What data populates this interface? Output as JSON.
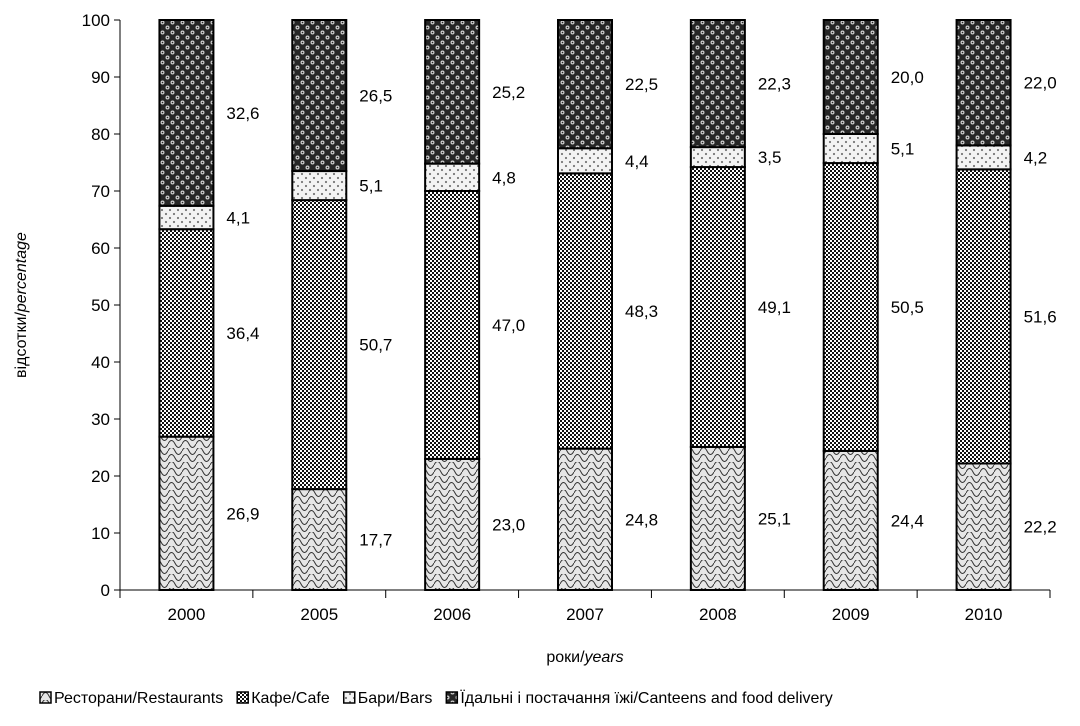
{
  "chart_data": {
    "type": "bar",
    "stacked": true,
    "categories": [
      "2000",
      "2005",
      "2006",
      "2007",
      "2008",
      "2009",
      "2010"
    ],
    "series": [
      {
        "name": "Ресторани/Restaurants",
        "values": [
          26.9,
          17.7,
          23.0,
          24.8,
          25.1,
          24.4,
          22.2
        ],
        "labels": [
          "26,9",
          "17,7",
          "23,0",
          "24,8",
          "25,1",
          "24,4",
          "22,2"
        ],
        "pattern": "scales"
      },
      {
        "name": "Кафе/Cafe",
        "values": [
          36.4,
          50.7,
          47.0,
          48.3,
          49.1,
          50.5,
          51.6
        ],
        "labels": [
          "36,4",
          "50,7",
          "47,0",
          "48,3",
          "49,1",
          "50,5",
          "51,6"
        ],
        "pattern": "checker"
      },
      {
        "name": "Бари/Bars",
        "values": [
          4.1,
          5.1,
          4.8,
          4.4,
          3.5,
          5.1,
          4.2
        ],
        "labels": [
          "4,1",
          "5,1",
          "4,8",
          "4,4",
          "3,5",
          "5,1",
          "4,2"
        ],
        "pattern": "dots"
      },
      {
        "name": "Їдальні і постачання їжі/Canteens and food delivery",
        "values": [
          32.6,
          26.5,
          25.2,
          22.5,
          22.3,
          20.0,
          22.0
        ],
        "labels": [
          "32,6",
          "26,5",
          "25,2",
          "22,5",
          "22,3",
          "20,0",
          "22,0"
        ],
        "pattern": "bubbles"
      }
    ],
    "ylim": [
      0,
      100
    ],
    "yticks": [
      "0",
      "10",
      "20",
      "30",
      "40",
      "50",
      "60",
      "70",
      "80",
      "90",
      "100"
    ],
    "xlabel": {
      "main": "роки/",
      "italic": "years"
    },
    "ylabel": {
      "main": "відсотки/",
      "italic": "percentage"
    },
    "grid": false,
    "legend_position": "bottom"
  }
}
